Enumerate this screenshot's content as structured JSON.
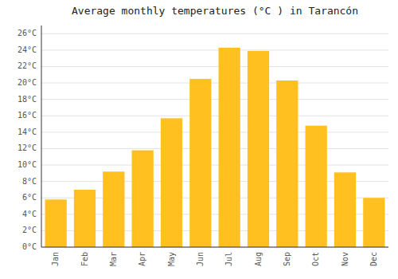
{
  "chart_data": {
    "type": "bar",
    "title": "Average monthly temperatures (°C ) in Tarancón",
    "categories": [
      "Jan",
      "Feb",
      "Mar",
      "Apr",
      "May",
      "Jun",
      "Jul",
      "Aug",
      "Sep",
      "Oct",
      "Nov",
      "Dec"
    ],
    "values": [
      5.8,
      7.0,
      9.2,
      11.8,
      15.7,
      20.5,
      24.3,
      23.9,
      20.3,
      14.8,
      9.1,
      6.0
    ],
    "color": "#FFC020",
    "ylim": [
      0,
      27
    ],
    "yticks": [
      {
        "value": 0,
        "label": "0°C"
      },
      {
        "value": 2,
        "label": "2°C"
      },
      {
        "value": 4,
        "label": "4°C"
      },
      {
        "value": 6,
        "label": "6°C"
      },
      {
        "value": 8,
        "label": "8°C"
      },
      {
        "value": 10,
        "label": "10°C"
      },
      {
        "value": 12,
        "label": "12°C"
      },
      {
        "value": 14,
        "label": "14°C"
      },
      {
        "value": 16,
        "label": "16°C"
      },
      {
        "value": 18,
        "label": "18°C"
      },
      {
        "value": 20,
        "label": "20°C"
      },
      {
        "value": 22,
        "label": "22°C"
      },
      {
        "value": 24,
        "label": "24°C"
      },
      {
        "value": 26,
        "label": "26°C"
      }
    ],
    "grid": true
  }
}
